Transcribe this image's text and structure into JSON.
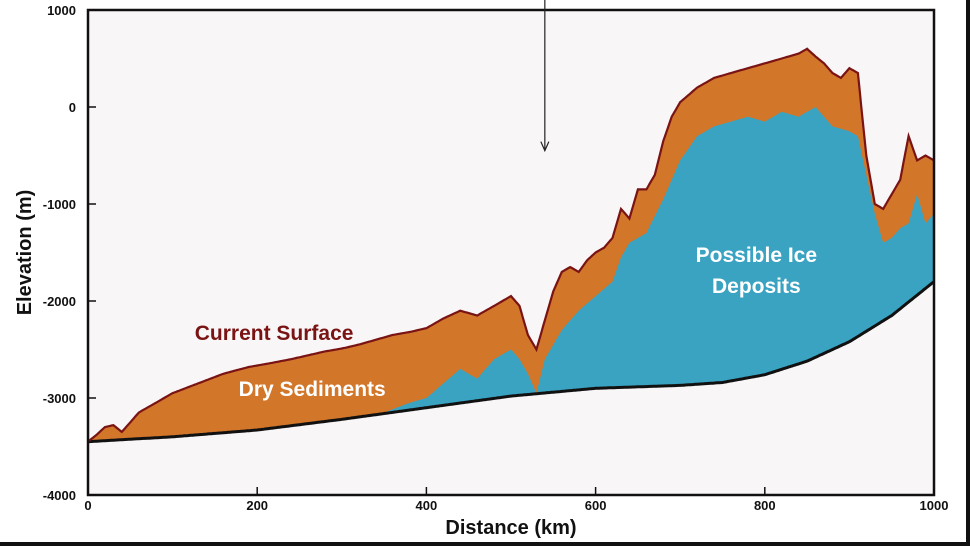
{
  "chart_data": {
    "type": "area",
    "xlabel": "Distance (km)",
    "ylabel": "Elevation (m)",
    "xlim": [
      0,
      1000
    ],
    "ylim": [
      -4000,
      1000
    ],
    "x_ticks": [
      0,
      200,
      400,
      600,
      800,
      1000
    ],
    "y_ticks": [
      1000,
      0,
      -1000,
      -2000,
      -3000,
      -4000
    ],
    "grid": false,
    "colors": {
      "surface_line": "#7a1414",
      "dry_sediments": "#d2762a",
      "ice_deposits": "#3aa3c2",
      "base_line": "#111111",
      "background": "#f9f6f8",
      "current_surface_label": "#7a1414",
      "inner_labels": "#ffffff"
    },
    "annotations": [
      {
        "text": "Current Surface",
        "x": 220,
        "y": -2400
      },
      {
        "text": "Dry Sediments",
        "x": 265,
        "y": -2980
      },
      {
        "text": "Possible Ice",
        "x": 790,
        "y": -1600
      },
      {
        "text": "Deposits",
        "x": 790,
        "y": -1920
      }
    ],
    "arrow": {
      "x": 540,
      "y_from": 1100,
      "y_to": -450
    },
    "series": [
      {
        "name": "Current Surface",
        "x": [
          0,
          10,
          20,
          30,
          40,
          50,
          60,
          80,
          100,
          130,
          160,
          190,
          210,
          240,
          260,
          280,
          300,
          320,
          340,
          360,
          380,
          400,
          420,
          440,
          460,
          480,
          500,
          510,
          520,
          530,
          540,
          550,
          560,
          570,
          580,
          590,
          600,
          610,
          620,
          630,
          640,
          650,
          660,
          670,
          680,
          690,
          700,
          720,
          740,
          760,
          780,
          800,
          820,
          840,
          850,
          860,
          870,
          880,
          890,
          900,
          910,
          920,
          930,
          940,
          950,
          960,
          970,
          980,
          990,
          1000
        ],
        "values": [
          -3450,
          -3380,
          -3300,
          -3280,
          -3350,
          -3250,
          -3150,
          -3050,
          -2950,
          -2850,
          -2750,
          -2680,
          -2650,
          -2600,
          -2560,
          -2520,
          -2490,
          -2450,
          -2400,
          -2350,
          -2320,
          -2280,
          -2180,
          -2100,
          -2150,
          -2050,
          -1950,
          -2050,
          -2350,
          -2500,
          -2200,
          -1900,
          -1700,
          -1650,
          -1700,
          -1580,
          -1500,
          -1450,
          -1350,
          -1050,
          -1150,
          -850,
          -850,
          -700,
          -350,
          -100,
          50,
          200,
          300,
          350,
          400,
          450,
          500,
          550,
          600,
          520,
          450,
          350,
          300,
          400,
          350,
          -500,
          -1000,
          -1050,
          -900,
          -750,
          -300,
          -550,
          -500,
          -550
        ]
      },
      {
        "name": "Possible Ice Deposits",
        "x": [
          0,
          100,
          200,
          250,
          300,
          350,
          380,
          400,
          420,
          440,
          460,
          480,
          500,
          510,
          520,
          530,
          540,
          560,
          580,
          600,
          620,
          630,
          640,
          650,
          660,
          680,
          700,
          720,
          740,
          760,
          780,
          800,
          820,
          840,
          860,
          880,
          900,
          910,
          920,
          930,
          940,
          950,
          960,
          970,
          980,
          990,
          1000
        ],
        "values": [
          -3450,
          -3400,
          -3350,
          -3280,
          -3230,
          -3150,
          -3050,
          -3000,
          -2850,
          -2700,
          -2800,
          -2600,
          -2500,
          -2600,
          -2750,
          -2950,
          -2600,
          -2300,
          -2100,
          -1950,
          -1800,
          -1550,
          -1400,
          -1350,
          -1300,
          -950,
          -550,
          -300,
          -200,
          -150,
          -100,
          -150,
          -50,
          -100,
          0,
          -200,
          -250,
          -300,
          -700,
          -1100,
          -1400,
          -1350,
          -1250,
          -1200,
          -900,
          -1200,
          -1100
        ]
      },
      {
        "name": "Base",
        "x": [
          0,
          100,
          200,
          300,
          400,
          500,
          600,
          700,
          750,
          800,
          850,
          900,
          950,
          1000
        ],
        "values": [
          -3450,
          -3400,
          -3330,
          -3220,
          -3100,
          -2980,
          -2900,
          -2870,
          -2840,
          -2760,
          -2620,
          -2420,
          -2150,
          -1800
        ]
      }
    ]
  }
}
